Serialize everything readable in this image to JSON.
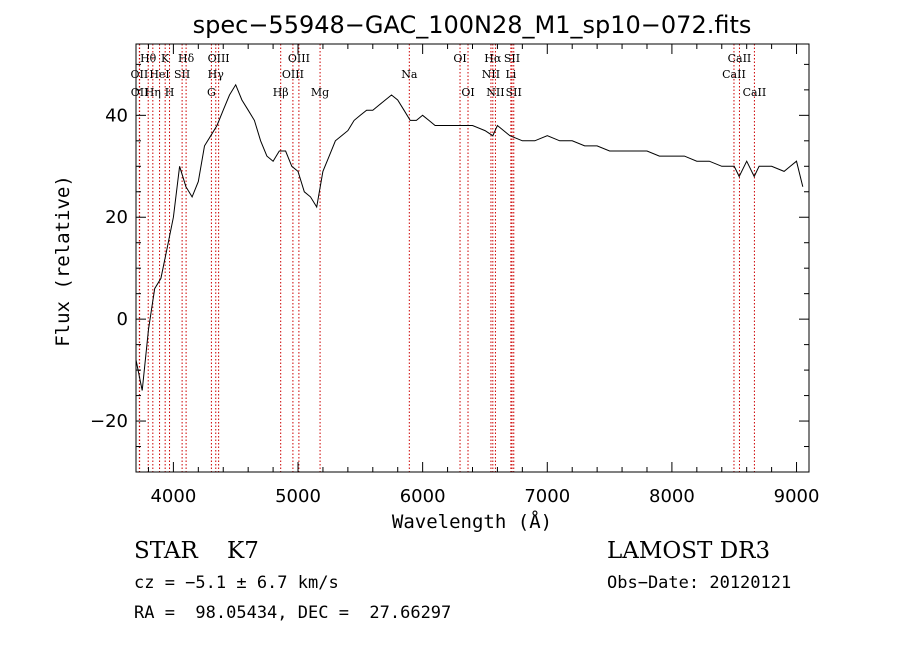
{
  "chart_data": {
    "type": "line",
    "title": "spec−55948−GAC_100N28_M1_sp10−072.fits",
    "xlabel": "Wavelength (Å)",
    "ylabel": "Flux (relative)",
    "xlim": [
      3700,
      9100
    ],
    "ylim": [
      -30,
      54
    ],
    "xticks": [
      4000,
      5000,
      6000,
      7000,
      8000,
      9000
    ],
    "yticks": [
      -20,
      0,
      20,
      40
    ],
    "grid": false,
    "series": [
      {
        "x": [
          3700,
          3750,
          3800,
          3850,
          3900,
          3950,
          4000,
          4050,
          4100,
          4150,
          4200,
          4250,
          4300,
          4350,
          4400,
          4450,
          4500,
          4550,
          4600,
          4650,
          4700,
          4750,
          4800,
          4850,
          4900,
          4950,
          5000,
          5050,
          5100,
          5150,
          5200,
          5250,
          5300,
          5350,
          5400,
          5450,
          5500,
          5550,
          5600,
          5650,
          5700,
          5750,
          5800,
          5850,
          5900,
          5950,
          6000,
          6050,
          6100,
          6200,
          6300,
          6400,
          6500,
          6563,
          6600,
          6700,
          6800,
          6900,
          7000,
          7100,
          7200,
          7300,
          7400,
          7500,
          7600,
          7700,
          7800,
          7900,
          8000,
          8100,
          8200,
          8300,
          8400,
          8500,
          8540,
          8600,
          8660,
          8700,
          8800,
          8900,
          8950,
          9000,
          9050
        ],
        "y": [
          -8,
          -14,
          -2,
          6,
          8,
          14,
          20,
          30,
          26,
          24,
          27,
          34,
          36,
          38,
          41,
          44,
          46,
          43,
          41,
          39,
          35,
          32,
          31,
          33,
          33,
          30,
          29,
          25,
          24,
          22,
          29,
          32,
          35,
          36,
          37,
          39,
          40,
          41,
          41,
          42,
          43,
          44,
          43,
          41,
          39,
          39,
          40,
          39,
          38,
          38,
          38,
          38,
          37,
          36,
          38,
          36,
          35,
          35,
          36,
          35,
          35,
          34,
          34,
          33,
          33,
          33,
          33,
          32,
          32,
          32,
          31,
          31,
          30,
          30,
          28,
          31,
          28,
          30,
          30,
          29,
          30,
          31,
          26
        ]
      }
    ],
    "lines": [
      {
        "label": "Hθ",
        "wave": 3798,
        "row": 1
      },
      {
        "label": "OII",
        "wave": 3727,
        "row": 2
      },
      {
        "label": "OII",
        "wave": 3729,
        "row": 3
      },
      {
        "label": "Hη",
        "wave": 3835,
        "row": 3
      },
      {
        "label": "K",
        "wave": 3934,
        "row": 1
      },
      {
        "label": "HeI",
        "wave": 3889,
        "row": 2
      },
      {
        "label": "H",
        "wave": 3969,
        "row": 3
      },
      {
        "label": "Hδ",
        "wave": 4102,
        "row": 1
      },
      {
        "label": "SII",
        "wave": 4070,
        "row": 2
      },
      {
        "label": "OIII",
        "wave": 4363,
        "row": 1
      },
      {
        "label": "Hγ",
        "wave": 4340,
        "row": 2
      },
      {
        "label": "G",
        "wave": 4305,
        "row": 3
      },
      {
        "label": "OIII",
        "wave": 5007,
        "row": 1
      },
      {
        "label": "OIII",
        "wave": 4959,
        "row": 2
      },
      {
        "label": "Hβ",
        "wave": 4861,
        "row": 3
      },
      {
        "label": "Mg",
        "wave": 5177,
        "row": 3
      },
      {
        "label": "Na",
        "wave": 5893,
        "row": 2
      },
      {
        "label": "OI",
        "wave": 6300,
        "row": 1
      },
      {
        "label": "OI",
        "wave": 6364,
        "row": 3
      },
      {
        "label": "Hα",
        "wave": 6563,
        "row": 1
      },
      {
        "label": "NII",
        "wave": 6548,
        "row": 2
      },
      {
        "label": "NII",
        "wave": 6584,
        "row": 3
      },
      {
        "label": "SII",
        "wave": 6717,
        "row": 1
      },
      {
        "label": "Li",
        "wave": 6708,
        "row": 2
      },
      {
        "label": "SII",
        "wave": 6731,
        "row": 3
      },
      {
        "label": "CaII",
        "wave": 8542,
        "row": 1
      },
      {
        "label": "CaII",
        "wave": 8498,
        "row": 2
      },
      {
        "label": "CaII",
        "wave": 8662,
        "row": 3
      }
    ]
  },
  "info": {
    "class_line": "STAR    K7",
    "survey": "LAMOST DR3",
    "cz_line": "cz = −5.1 ± 6.7 km/s",
    "obs_date": "Obs−Date: 20120121",
    "radec_line": "RA =  98.05434, DEC =  27.66297"
  },
  "colors": {
    "line_markers": "#cc0000",
    "spectrum": "#000000"
  }
}
